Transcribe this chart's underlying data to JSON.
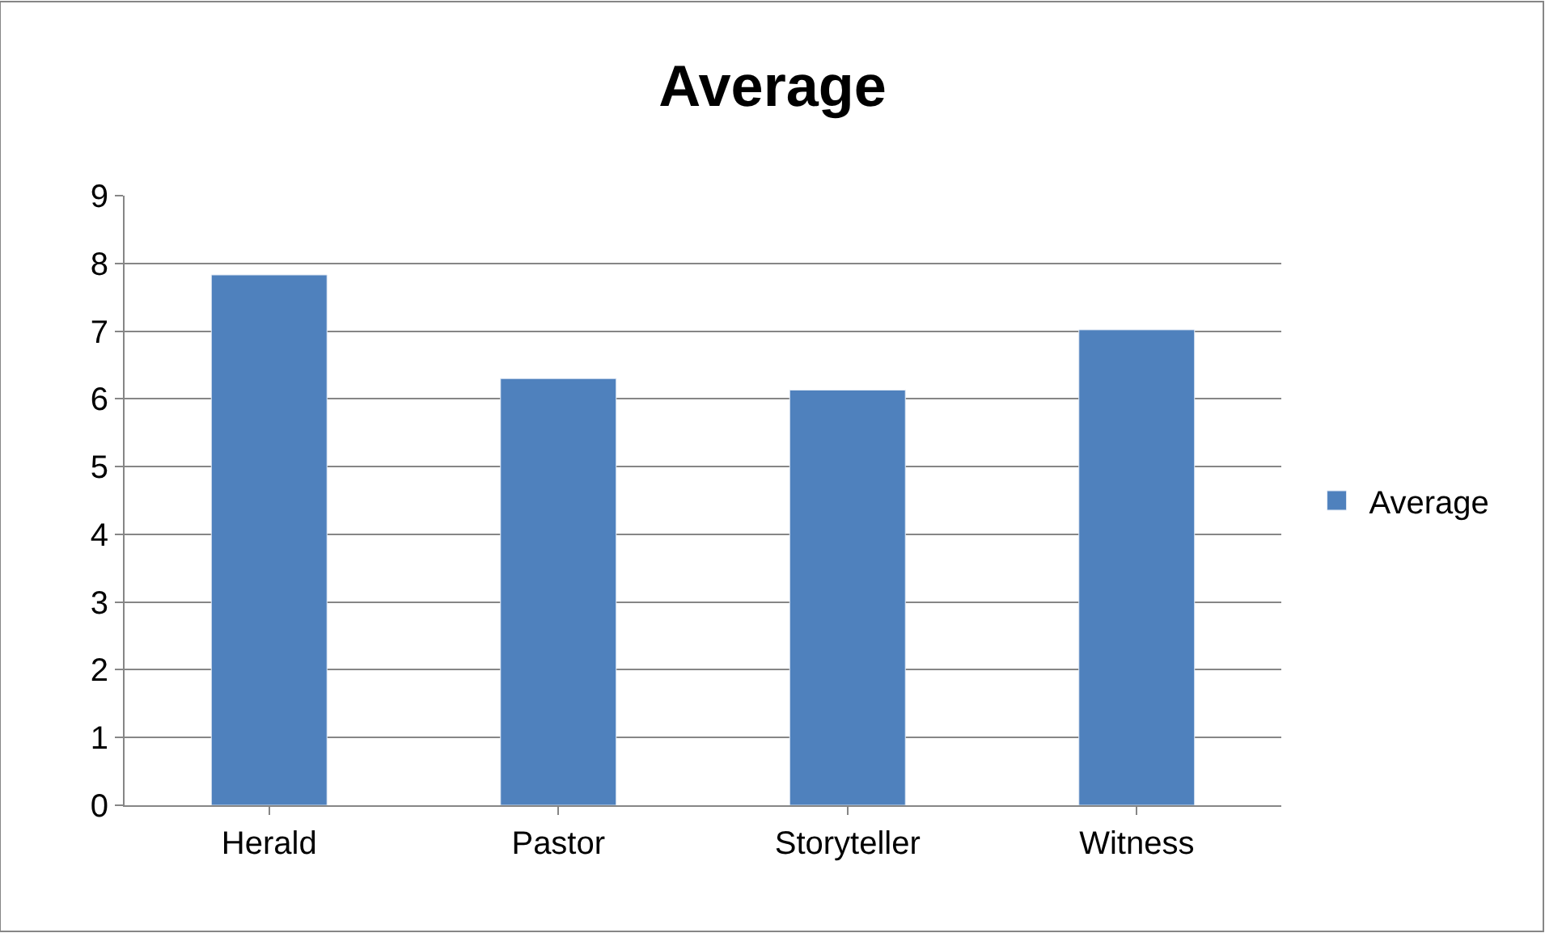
{
  "chart_data": {
    "type": "bar",
    "title": "Average",
    "categories": [
      "Herald",
      "Pastor",
      "Storyteller",
      "Witness"
    ],
    "series": [
      {
        "name": "Average",
        "color": "#4f81bd",
        "values": [
          7.83,
          6.3,
          6.13,
          7.02
        ]
      }
    ],
    "ylim": [
      0,
      9
    ],
    "yticks": [
      0,
      1,
      2,
      3,
      4,
      5,
      6,
      7,
      8,
      9
    ],
    "grid": "y",
    "legend": "right"
  }
}
